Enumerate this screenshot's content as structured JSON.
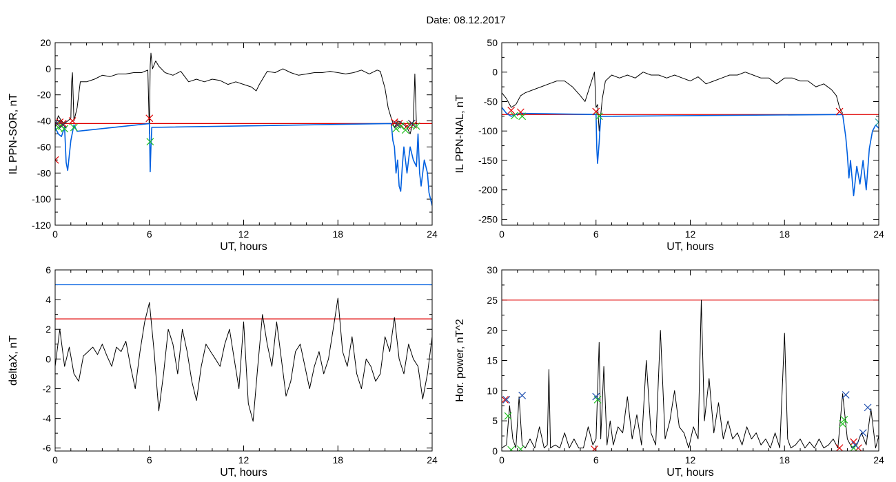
{
  "figure": {
    "title": "Date:  08.12.2017"
  },
  "chart_data": [
    {
      "type": "line",
      "xlabel": "UT, hours",
      "ylabel": "IL PPN-SOR, nT",
      "xlim": [
        0,
        24
      ],
      "ylim": [
        -120,
        20
      ],
      "xticks": [
        0,
        6,
        12,
        18,
        24
      ],
      "yticks": [
        -120,
        -100,
        -80,
        -60,
        -40,
        -20,
        0,
        20
      ],
      "hlines": [
        {
          "y": -42,
          "color": "#e00000"
        }
      ],
      "series": [
        {
          "color": "#000000",
          "x": [
            0,
            0.2,
            0.4,
            0.6,
            0.8,
            1.0,
            1.05,
            1.1,
            1.2,
            1.4,
            1.6,
            2.0,
            2.5,
            3.0,
            3.5,
            4.0,
            4.5,
            5.0,
            5.5,
            5.9,
            6.0,
            6.05,
            6.1,
            6.2,
            6.4,
            6.6,
            7.0,
            7.5,
            8.0,
            8.5,
            9.0,
            9.5,
            10.0,
            10.5,
            11.0,
            11.5,
            12.0,
            12.5,
            12.8,
            13.0,
            13.5,
            14.0,
            14.5,
            15.0,
            15.5,
            16.0,
            16.5,
            17.0,
            17.5,
            18.0,
            18.5,
            19.0,
            19.5,
            20.0,
            20.5,
            20.7,
            21.0,
            21.2,
            21.4,
            21.6,
            21.8,
            22.0,
            22.2,
            22.4,
            22.6,
            22.8,
            22.9,
            23.0
          ],
          "y": [
            -45,
            -36,
            -40,
            -42,
            -40,
            -38,
            -10,
            -3,
            -40,
            -30,
            -10,
            -10,
            -8,
            -5,
            -6,
            -4,
            -4,
            -3,
            -3,
            -1,
            -50,
            2,
            12,
            0,
            6,
            2,
            -3,
            -5,
            -2,
            -10,
            -8,
            -10,
            -8,
            -9,
            -12,
            -10,
            -12,
            -14,
            -17,
            -12,
            -2,
            -3,
            0,
            -3,
            -5,
            -4,
            -3,
            -3,
            -2,
            -3,
            -4,
            -3,
            -1,
            -4,
            -1,
            -2,
            -15,
            -30,
            -38,
            -45,
            -40,
            -41,
            -43,
            -45,
            -50,
            -40,
            -4,
            -43
          ]
        },
        {
          "color": "#0060e0",
          "x": [
            0,
            0.2,
            0.4,
            0.6,
            0.7,
            0.8,
            1.0,
            1.2,
            1.4,
            6.0,
            6.05,
            6.1,
            6.15,
            21.4,
            21.5,
            21.6,
            21.7,
            21.8,
            21.9,
            22.0,
            22.1,
            22.2,
            22.4,
            22.6,
            22.8,
            23.0,
            23.1,
            23.2,
            23.3,
            23.5,
            23.7,
            23.8,
            23.9,
            24.0
          ],
          "y": [
            -45,
            -50,
            -52,
            -45,
            -72,
            -78,
            -55,
            -43,
            -48,
            -42,
            -79,
            -60,
            -45,
            -42,
            -55,
            -60,
            -80,
            -70,
            -90,
            -94,
            -75,
            -60,
            -80,
            -60,
            -70,
            -75,
            -50,
            -80,
            -90,
            -70,
            -80,
            -95,
            -100,
            -105
          ]
        }
      ],
      "markers": [
        {
          "symbol": "x",
          "color": "#e00000",
          "x": [
            0,
            0.3,
            0.5,
            1.1,
            6.0,
            21.6,
            21.9,
            22.4,
            22.8
          ],
          "y": [
            -70,
            -41,
            -42,
            -40,
            -38,
            -41,
            -42,
            -44,
            -43
          ]
        },
        {
          "symbol": "x",
          "color": "#20c020",
          "x": [
            0.2,
            0.4,
            0.6,
            1.2,
            6.05,
            21.7,
            22.0,
            22.3,
            22.6,
            23.0
          ],
          "y": [
            -45,
            -44,
            -46,
            -45,
            -56,
            -46,
            -44,
            -47,
            -43,
            -44
          ]
        },
        {
          "symbol": "x",
          "color": "#303060",
          "x": [
            0.1,
            0.5,
            21.8,
            22.7
          ],
          "y": [
            -42,
            -43,
            -43,
            -42
          ]
        }
      ]
    },
    {
      "type": "line",
      "xlabel": "UT, hours",
      "ylabel": "IL PPN-NAL, nT",
      "xlim": [
        0,
        24
      ],
      "ylim": [
        -260,
        50
      ],
      "xticks": [
        0,
        6,
        12,
        18,
        24
      ],
      "yticks": [
        -250,
        -200,
        -150,
        -100,
        -50,
        0,
        50
      ],
      "hlines": [
        {
          "y": -72,
          "color": "#e00000"
        }
      ],
      "series": [
        {
          "color": "#000000",
          "x": [
            0,
            0.3,
            0.6,
            0.9,
            1.2,
            1.5,
            2.0,
            2.5,
            3.0,
            3.5,
            4.0,
            4.5,
            5.0,
            5.3,
            5.6,
            5.9,
            6.0,
            6.1,
            6.2,
            6.4,
            6.6,
            7.0,
            7.5,
            8.0,
            8.5,
            9.0,
            9.5,
            10.0,
            10.5,
            11.0,
            11.5,
            12.0,
            12.5,
            13.0,
            13.5,
            14.0,
            14.5,
            15.0,
            15.5,
            16.0,
            16.5,
            17.0,
            17.5,
            18.0,
            18.5,
            19.0,
            19.5,
            20.0,
            20.5,
            21.0,
            21.3,
            21.5,
            21.7
          ],
          "y": [
            -35,
            -45,
            -60,
            -55,
            -40,
            -35,
            -30,
            -25,
            -20,
            -15,
            -15,
            -25,
            -40,
            -50,
            -25,
            0,
            -60,
            -55,
            -100,
            -45,
            -15,
            -5,
            -10,
            -5,
            -10,
            0,
            -5,
            -5,
            -10,
            -5,
            -10,
            -15,
            -8,
            -20,
            -15,
            -10,
            -5,
            -5,
            0,
            -5,
            -10,
            -10,
            -20,
            -10,
            -10,
            -15,
            -15,
            -25,
            -20,
            -30,
            -40,
            -60,
            -70
          ]
        },
        {
          "color": "#0060e0",
          "x": [
            0,
            0.3,
            0.6,
            0.9,
            1.2,
            6.0,
            6.05,
            6.1,
            6.2,
            6.3,
            21.7,
            21.9,
            22.0,
            22.1,
            22.2,
            22.4,
            22.6,
            22.8,
            23.0,
            23.2,
            23.4,
            23.6,
            23.8,
            24.0
          ],
          "y": [
            -60,
            -70,
            -75,
            -72,
            -70,
            -72,
            -130,
            -155,
            -120,
            -75,
            -72,
            -110,
            -140,
            -180,
            -150,
            -210,
            -160,
            -190,
            -150,
            -200,
            -130,
            -100,
            -90,
            -95
          ]
        }
      ],
      "markers": [
        {
          "symbol": "x",
          "color": "#e00000",
          "x": [
            0.6,
            1.2,
            6.0,
            21.5
          ],
          "y": [
            -65,
            -68,
            -67,
            -67
          ]
        },
        {
          "symbol": "x",
          "color": "#20c020",
          "x": [
            0.8,
            1.3,
            6.2
          ],
          "y": [
            -74,
            -75,
            -75
          ]
        },
        {
          "symbol": "x",
          "color": "#20a0a0",
          "x": [
            24.0
          ],
          "y": [
            -85
          ]
        }
      ]
    },
    {
      "type": "line",
      "xlabel": "UT, hours",
      "ylabel": "deltaX, nT",
      "xlim": [
        0,
        24
      ],
      "ylim": [
        -6.2,
        6
      ],
      "xticks": [
        0,
        6,
        12,
        18,
        24
      ],
      "yticks": [
        -6,
        -4,
        -2,
        0,
        2,
        4,
        6
      ],
      "hlines": [
        {
          "y": 5,
          "color": "#0060e0"
        },
        {
          "y": 2.7,
          "color": "#e00000"
        }
      ],
      "series": [
        {
          "color": "#000000",
          "x": [
            0,
            0.3,
            0.6,
            0.9,
            1.2,
            1.5,
            1.8,
            2.1,
            2.4,
            2.7,
            3.0,
            3.3,
            3.6,
            3.9,
            4.2,
            4.5,
            4.8,
            5.1,
            5.4,
            5.7,
            6.0,
            6.3,
            6.6,
            6.9,
            7.2,
            7.5,
            7.8,
            8.1,
            8.4,
            8.7,
            9.0,
            9.3,
            9.6,
            9.9,
            10.2,
            10.5,
            10.8,
            11.1,
            11.4,
            11.7,
            12.0,
            12.3,
            12.6,
            12.9,
            13.2,
            13.5,
            13.8,
            14.1,
            14.4,
            14.7,
            15.0,
            15.3,
            15.6,
            15.9,
            16.2,
            16.5,
            16.8,
            17.1,
            17.4,
            17.7,
            18.0,
            18.3,
            18.6,
            18.9,
            19.2,
            19.5,
            19.8,
            20.1,
            20.4,
            20.7,
            21.0,
            21.3,
            21.6,
            21.9,
            22.2,
            22.5,
            22.8,
            23.1,
            23.4,
            23.7,
            24.0
          ],
          "y": [
            -0.5,
            2.0,
            -0.5,
            0.8,
            -1.0,
            -1.5,
            0.2,
            0.5,
            0.8,
            0.3,
            1.0,
            0.2,
            -0.5,
            0.8,
            0.5,
            1.2,
            -0.5,
            -2.0,
            0.5,
            2.5,
            3.8,
            0.5,
            -3.5,
            -1.0,
            2.0,
            1.0,
            -1.0,
            2.0,
            0.5,
            -1.5,
            -2.8,
            -0.5,
            1.0,
            0.5,
            0.0,
            -0.5,
            1.0,
            2.0,
            0.0,
            -2.0,
            2.5,
            -3.0,
            -4.2,
            -0.5,
            3.0,
            1.0,
            -0.5,
            2.5,
            0.0,
            -2.5,
            -1.5,
            0.5,
            1.0,
            -0.5,
            -2.0,
            -0.5,
            0.5,
            -1.0,
            0.0,
            2.0,
            4.1,
            0.5,
            -0.5,
            1.5,
            -1.0,
            -2.0,
            0.0,
            -0.5,
            -1.5,
            -1.0,
            1.5,
            0.5,
            2.8,
            0.0,
            -1.0,
            1.0,
            0.0,
            -0.5,
            -2.7,
            -1.0,
            1.5
          ]
        }
      ]
    },
    {
      "type": "line",
      "xlabel": "UT, hours",
      "ylabel": "Hor. power, nT^2",
      "xlim": [
        0,
        24
      ],
      "ylim": [
        0,
        30
      ],
      "xticks": [
        0,
        6,
        12,
        18,
        24
      ],
      "yticks": [
        0,
        5,
        10,
        15,
        20,
        25,
        30
      ],
      "hlines": [
        {
          "y": 25,
          "color": "#e00000"
        }
      ],
      "series": [
        {
          "color": "#000000",
          "x": [
            0,
            0.3,
            0.5,
            0.7,
            0.9,
            1.1,
            1.3,
            1.5,
            1.8,
            2.1,
            2.4,
            2.7,
            2.9,
            3.0,
            3.1,
            3.4,
            3.7,
            4.0,
            4.3,
            4.6,
            4.9,
            5.2,
            5.5,
            5.8,
            6.0,
            6.2,
            6.3,
            6.5,
            6.7,
            6.9,
            7.1,
            7.4,
            7.7,
            8.0,
            8.3,
            8.6,
            8.9,
            9.2,
            9.5,
            9.8,
            10.1,
            10.4,
            10.7,
            11.0,
            11.3,
            11.6,
            11.9,
            12.2,
            12.5,
            12.7,
            12.9,
            13.2,
            13.5,
            13.8,
            14.1,
            14.4,
            14.7,
            15.0,
            15.3,
            15.6,
            15.9,
            16.2,
            16.5,
            16.8,
            17.1,
            17.4,
            17.7,
            18.0,
            18.2,
            18.4,
            18.7,
            19.0,
            19.3,
            19.6,
            19.9,
            20.2,
            20.5,
            20.8,
            21.1,
            21.4,
            21.7,
            22.0,
            22.3,
            22.6,
            22.9,
            23.2,
            23.5,
            23.8,
            24.0
          ],
          "y": [
            0.5,
            1.0,
            7.5,
            2.0,
            0.5,
            9.0,
            1.0,
            0.5,
            2.0,
            0.5,
            4.0,
            0.5,
            1.0,
            13.5,
            0.5,
            1.0,
            0.5,
            3.0,
            0.5,
            2.0,
            0.5,
            0.5,
            4.0,
            1.0,
            2.0,
            18.0,
            2.0,
            14.0,
            1.0,
            5.0,
            1.0,
            4.0,
            3.0,
            9.0,
            2.0,
            6.0,
            1.0,
            15.0,
            3.0,
            1.0,
            20.0,
            2.0,
            5.0,
            10.0,
            4.0,
            3.0,
            0.5,
            4.0,
            2.0,
            25.0,
            5.0,
            12.0,
            3.0,
            8.0,
            2.0,
            5.0,
            2.0,
            3.0,
            1.0,
            4.0,
            2.0,
            3.0,
            1.0,
            2.0,
            0.5,
            3.0,
            0.5,
            19.5,
            2.0,
            0.5,
            1.0,
            2.0,
            0.5,
            1.5,
            0.5,
            2.0,
            0.5,
            1.0,
            2.0,
            0.5,
            9.5,
            2.0,
            0.5,
            1.0,
            3.0,
            1.0,
            7.0,
            0.5,
            2.5
          ]
        }
      ],
      "markers": [
        {
          "symbol": "x",
          "color": "#e00000",
          "x": [
            0.2,
            5.9,
            21.5,
            22.4,
            22.7
          ],
          "y": [
            8.5,
            0.3,
            0.5,
            1.5,
            0.5
          ]
        },
        {
          "symbol": "x",
          "color": "#20c020",
          "x": [
            0.4,
            0.6,
            1.2,
            6.1,
            21.7,
            21.8,
            22.4
          ],
          "y": [
            5.8,
            0.2,
            0.3,
            8.5,
            4.5,
            5.2,
            0.5
          ]
        },
        {
          "symbol": "x",
          "color": "#2050b0",
          "x": [
            0.3,
            1.3,
            6.0,
            21.9,
            22.5,
            23.0,
            23.3
          ],
          "y": [
            8.5,
            9.2,
            9.0,
            9.3,
            1.0,
            3.0,
            7.2
          ]
        }
      ]
    }
  ]
}
